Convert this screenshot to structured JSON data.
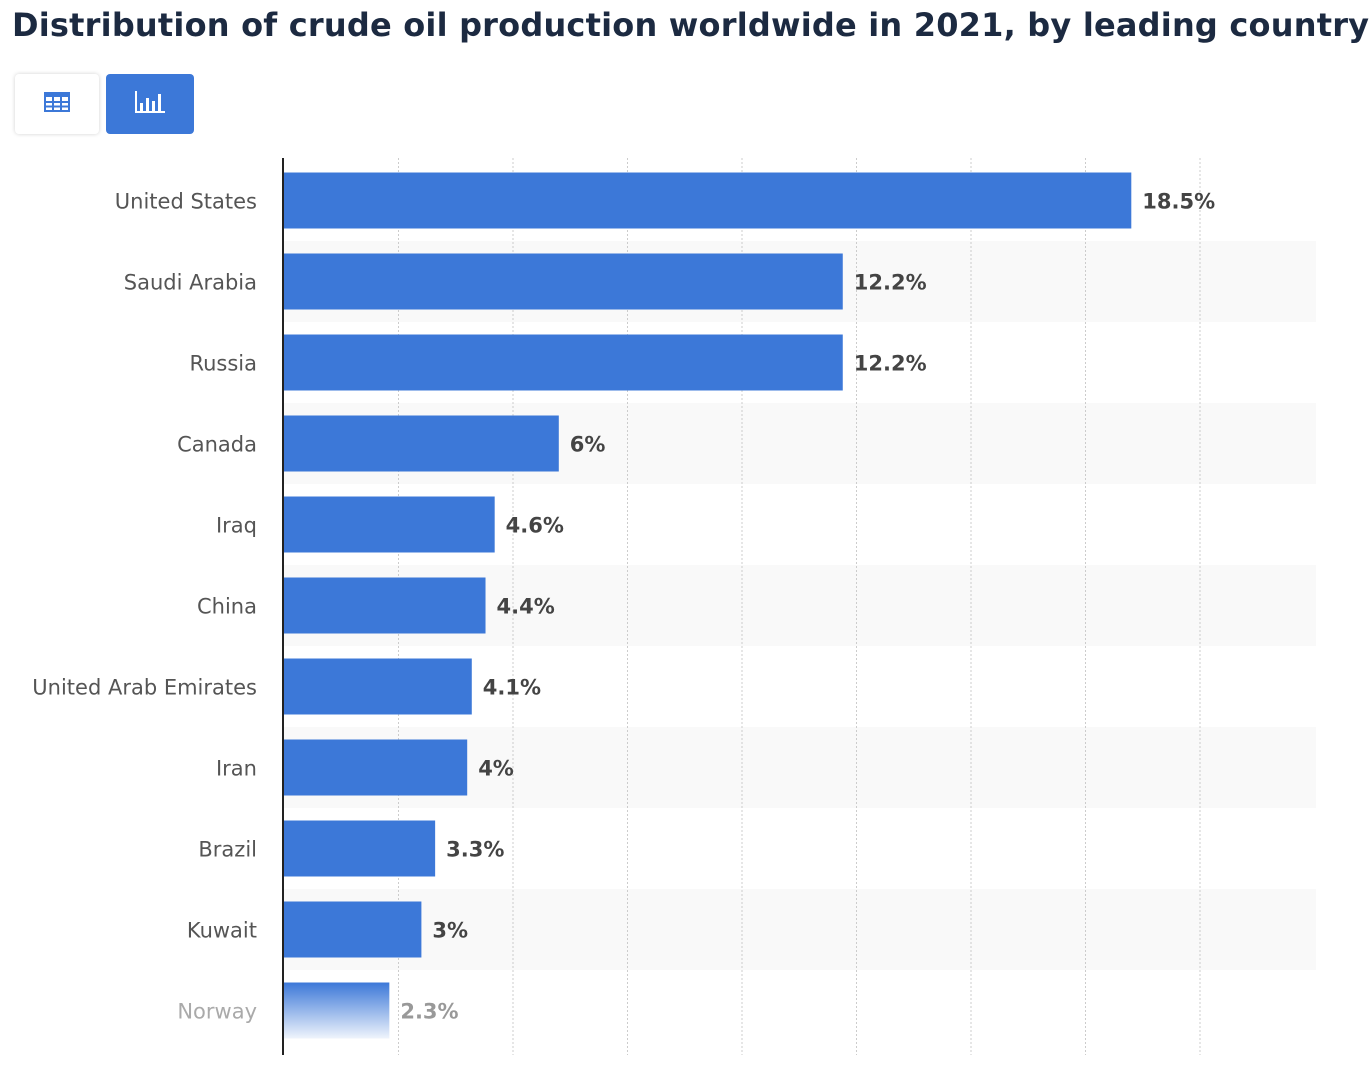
{
  "chart_data": {
    "type": "bar",
    "orientation": "horizontal",
    "title": "Distribution of crude oil production worldwide in 2021, by leading country",
    "xlabel": "",
    "ylabel": "",
    "unit": "%",
    "xlim": [
      0,
      22
    ],
    "grid": true,
    "categories": [
      "United States",
      "Saudi Arabia",
      "Russia",
      "Canada",
      "Iraq",
      "China",
      "United Arab Emirates",
      "Iran",
      "Brazil",
      "Kuwait",
      "Norway"
    ],
    "values": [
      18.5,
      12.2,
      12.2,
      6,
      4.6,
      4.4,
      4.1,
      4,
      3.3,
      3,
      2.3
    ],
    "value_labels": [
      "18.5%",
      "12.2%",
      "12.2%",
      "6%",
      "4.6%",
      "4.4%",
      "4.1%",
      "4%",
      "3.3%",
      "3%",
      "2.3%"
    ]
  },
  "toolbar": {
    "table_view_icon": "table-icon",
    "chart_view_icon": "bar-chart-icon",
    "active_view": "chart"
  },
  "colors": {
    "bar": "#3c78d8",
    "title": "#1c2a41",
    "stripe": "#f9f9f9",
    "grid": "#cccccc"
  }
}
